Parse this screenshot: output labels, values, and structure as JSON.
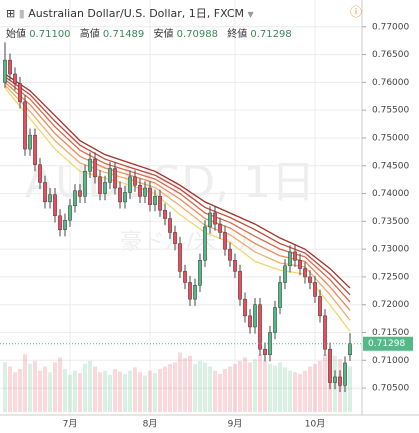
{
  "chart_data": {
    "type": "candlestick",
    "title": "Australian Dollar/U.S. Dollar, 1日, FXCM",
    "header": {
      "open_label": "始値",
      "open": "0.71100",
      "high_label": "高値",
      "high": "0.71489",
      "low_label": "安値",
      "low": "0.70988",
      "close_label": "終値",
      "close": "0.71298"
    },
    "watermark": [
      "AUDUSD, 1日",
      "豪ドル/米ドル"
    ],
    "up_color": "#53b987",
    "down_color": "#eb4d5c",
    "grid": true,
    "categories": [
      null,
      null,
      null,
      null,
      null,
      null,
      null,
      null,
      null,
      null,
      null,
      null,
      null,
      "7月",
      null,
      null,
      null,
      null,
      null,
      null,
      null,
      null,
      null,
      null,
      null,
      null,
      null,
      null,
      null,
      "8月",
      null,
      null,
      null,
      null,
      null,
      null,
      null,
      null,
      null,
      null,
      null,
      null,
      null,
      null,
      null,
      null,
      "9月",
      null,
      null,
      null,
      null,
      null,
      null,
      null,
      null,
      null,
      null,
      null,
      null,
      null,
      null,
      null,
      "10月",
      null,
      null,
      null,
      null,
      null,
      null,
      null
    ],
    "open": [
      0.76,
      0.764,
      0.7615,
      0.7598,
      0.7565,
      0.748,
      0.7505,
      0.7452,
      0.742,
      0.7385,
      0.7398,
      0.736,
      0.7335,
      0.7352,
      0.7378,
      0.7405,
      0.7395,
      0.744,
      0.7462,
      0.743,
      0.74,
      0.742,
      0.7445,
      0.741,
      0.7385,
      0.7402,
      0.743,
      0.7415,
      0.7395,
      0.741,
      0.738,
      0.7395,
      0.737,
      0.7355,
      0.733,
      0.731,
      0.726,
      0.724,
      0.721,
      0.7235,
      0.728,
      0.734,
      0.7365,
      0.7345,
      0.733,
      0.73,
      0.728,
      0.726,
      0.721,
      0.718,
      0.716,
      0.72,
      0.712,
      0.711,
      0.715,
      0.7195,
      0.724,
      0.727,
      0.7295,
      0.728,
      0.7265,
      0.725,
      0.724,
      0.7215,
      0.718,
      0.712,
      0.706,
      0.707,
      0.7055,
      0.711
    ],
    "high": [
      0.7672,
      0.7652,
      0.7627,
      0.761,
      0.7577,
      0.7517,
      0.7517,
      0.7464,
      0.7432,
      0.741,
      0.741,
      0.7372,
      0.7364,
      0.739,
      0.7417,
      0.7417,
      0.7452,
      0.7474,
      0.7474,
      0.7442,
      0.7432,
      0.7457,
      0.7457,
      0.7422,
      0.7414,
      0.7442,
      0.7442,
      0.7427,
      0.7422,
      0.7422,
      0.7407,
      0.7407,
      0.7382,
      0.7367,
      0.7342,
      0.7322,
      0.7272,
      0.7252,
      0.7247,
      0.7292,
      0.7352,
      0.7377,
      0.7377,
      0.7357,
      0.7342,
      0.7312,
      0.7292,
      0.7272,
      0.7222,
      0.7192,
      0.7212,
      0.7212,
      0.7132,
      0.7162,
      0.7207,
      0.7252,
      0.7282,
      0.7307,
      0.7307,
      0.7292,
      0.7277,
      0.7262,
      0.7252,
      0.7227,
      0.7192,
      0.7132,
      0.7082,
      0.7082,
      0.7107,
      0.71489
    ],
    "low": [
      0.759,
      0.7603,
      0.7586,
      0.7553,
      0.7468,
      0.7468,
      0.744,
      0.7408,
      0.7373,
      0.7373,
      0.7348,
      0.7323,
      0.7323,
      0.734,
      0.7366,
      0.7383,
      0.7383,
      0.7428,
      0.7418,
      0.7388,
      0.7388,
      0.7408,
      0.7398,
      0.7373,
      0.7373,
      0.739,
      0.7403,
      0.7383,
      0.7383,
      0.7368,
      0.7368,
      0.7358,
      0.7343,
      0.7318,
      0.7298,
      0.7248,
      0.7228,
      0.7198,
      0.7198,
      0.7223,
      0.7268,
      0.7328,
      0.7333,
      0.7318,
      0.7288,
      0.7268,
      0.7248,
      0.7198,
      0.7168,
      0.7148,
      0.7148,
      0.7108,
      0.7098,
      0.7098,
      0.7138,
      0.7183,
      0.7228,
      0.7258,
      0.7268,
      0.7253,
      0.7238,
      0.7228,
      0.7203,
      0.7168,
      0.7108,
      0.7048,
      0.7048,
      0.7043,
      0.7043,
      0.70988
    ],
    "close": [
      0.764,
      0.7615,
      0.7598,
      0.7565,
      0.748,
      0.7505,
      0.7452,
      0.742,
      0.7385,
      0.7398,
      0.736,
      0.7335,
      0.7352,
      0.7378,
      0.7405,
      0.7395,
      0.744,
      0.7462,
      0.743,
      0.74,
      0.742,
      0.7445,
      0.741,
      0.7385,
      0.7402,
      0.743,
      0.7415,
      0.7395,
      0.741,
      0.738,
      0.7395,
      0.737,
      0.7355,
      0.733,
      0.731,
      0.726,
      0.724,
      0.721,
      0.7235,
      0.728,
      0.734,
      0.7365,
      0.7345,
      0.733,
      0.73,
      0.728,
      0.726,
      0.721,
      0.718,
      0.716,
      0.72,
      0.712,
      0.711,
      0.715,
      0.7195,
      0.724,
      0.727,
      0.7295,
      0.728,
      0.7265,
      0.725,
      0.724,
      0.7215,
      0.718,
      0.712,
      0.706,
      0.707,
      0.7055,
      0.7095,
      0.71298
    ],
    "volume": [
      60,
      55,
      48,
      52,
      70,
      58,
      62,
      50,
      55,
      48,
      60,
      66,
      52,
      45,
      50,
      47,
      58,
      62,
      55,
      48,
      50,
      45,
      52,
      49,
      46,
      50,
      54,
      48,
      44,
      50,
      47,
      52,
      55,
      58,
      60,
      72,
      65,
      68,
      58,
      62,
      60,
      55,
      50,
      46,
      52,
      55,
      58,
      62,
      66,
      60,
      64,
      70,
      62,
      58,
      56,
      60,
      54,
      50,
      48,
      46,
      50,
      55,
      58,
      62,
      70,
      75,
      68,
      64,
      60,
      55
    ],
    "series": [
      {
        "color": "#a0302a",
        "x": [
          0,
          5,
          10,
          15,
          20,
          25,
          30,
          35,
          40,
          45,
          50,
          55,
          60,
          65,
          69
        ],
        "values": [
          0.7615,
          0.7585,
          0.754,
          0.7495,
          0.747,
          0.7455,
          0.744,
          0.7415,
          0.7385,
          0.7365,
          0.7345,
          0.732,
          0.73,
          0.7265,
          0.723
        ]
      },
      {
        "color": "#c0483a",
        "x": [
          0,
          5,
          10,
          15,
          20,
          25,
          30,
          35,
          40,
          45,
          50,
          55,
          60,
          65,
          69
        ],
        "values": [
          0.761,
          0.7578,
          0.753,
          0.7487,
          0.7462,
          0.7447,
          0.7433,
          0.7408,
          0.7375,
          0.7357,
          0.7335,
          0.731,
          0.7293,
          0.7255,
          0.7218
        ]
      },
      {
        "color": "#d9674a",
        "x": [
          0,
          5,
          10,
          15,
          20,
          25,
          30,
          35,
          40,
          45,
          50,
          55,
          60,
          65,
          69
        ],
        "values": [
          0.7605,
          0.757,
          0.752,
          0.7478,
          0.7454,
          0.744,
          0.7426,
          0.74,
          0.7365,
          0.7348,
          0.7323,
          0.73,
          0.7286,
          0.7245,
          0.7205
        ]
      },
      {
        "color": "#e98a5a",
        "x": [
          0,
          5,
          10,
          15,
          20,
          25,
          30,
          35,
          40,
          45,
          50,
          55,
          60,
          65,
          69
        ],
        "values": [
          0.76,
          0.756,
          0.7508,
          0.7467,
          0.7446,
          0.7433,
          0.7419,
          0.739,
          0.7355,
          0.7338,
          0.731,
          0.7288,
          0.7278,
          0.7232,
          0.719
        ]
      },
      {
        "color": "#f0ae6a",
        "x": [
          0,
          5,
          10,
          15,
          20,
          25,
          30,
          35,
          40,
          45,
          50,
          55,
          60,
          65,
          69
        ],
        "values": [
          0.7595,
          0.7548,
          0.7495,
          0.7455,
          0.7438,
          0.7425,
          0.7411,
          0.7378,
          0.7343,
          0.7326,
          0.7295,
          0.7275,
          0.7268,
          0.7218,
          0.7172
        ]
      },
      {
        "color": "#f3d76a",
        "x": [
          0,
          5,
          10,
          15,
          20,
          25,
          30,
          35,
          40,
          45,
          50,
          55,
          60,
          65,
          69
        ],
        "values": [
          0.759,
          0.7535,
          0.748,
          0.744,
          0.7428,
          0.7415,
          0.74,
          0.7362,
          0.733,
          0.7312,
          0.7278,
          0.7262,
          0.7255,
          0.72,
          0.7152
        ]
      }
    ],
    "ylim": [
      0.7007,
      0.7723
    ],
    "yticks": [
      {
        "value": 0.705,
        "label": "0.70500"
      },
      {
        "value": 0.71,
        "label": "0.71000"
      },
      {
        "value": 0.715,
        "label": "0.71500"
      },
      {
        "value": 0.72,
        "label": "0.72000"
      },
      {
        "value": 0.725,
        "label": "0.72500"
      },
      {
        "value": 0.73,
        "label": "0.73000"
      },
      {
        "value": 0.735,
        "label": "0.73500"
      },
      {
        "value": 0.74,
        "label": "0.74000"
      },
      {
        "value": 0.745,
        "label": "0.74500"
      },
      {
        "value": 0.75,
        "label": "0.75000"
      },
      {
        "value": 0.755,
        "label": "0.75500"
      },
      {
        "value": 0.76,
        "label": "0.76000"
      },
      {
        "value": 0.765,
        "label": "0.76500"
      },
      {
        "value": 0.77,
        "label": "0.77000"
      }
    ]
  }
}
